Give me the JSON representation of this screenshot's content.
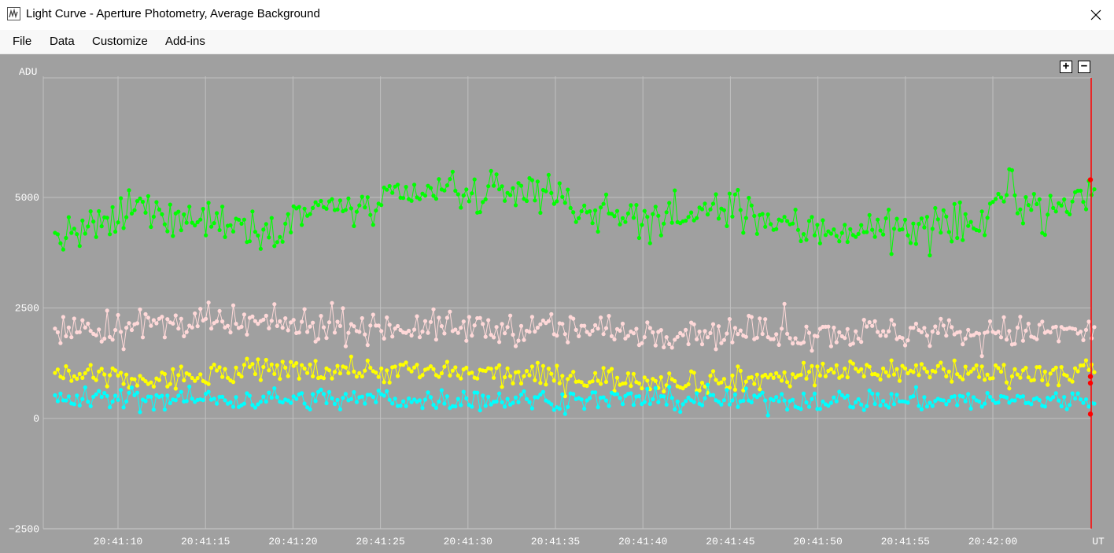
{
  "window": {
    "title": "Light Curve - Aperture Photometry, Average Background",
    "close_label": "✕"
  },
  "menu": {
    "items": [
      "File",
      "Data",
      "Customize",
      "Add-ins"
    ]
  },
  "zoom": {
    "plus_label": "+",
    "minus_label": "−"
  },
  "colors": {
    "plot_background": "#a0a0a0",
    "grid": "#c0c0c0",
    "cursor_line": "#ff0000",
    "series_1": "#00ff00",
    "series_2": "#ffd8d8",
    "series_3": "#ffff00",
    "series_4": "#00ffff"
  },
  "chart_data": {
    "type": "line",
    "title": "Light Curve - Aperture Photometry, Average Background",
    "ylabel": "ADU",
    "xlabel": "UT",
    "ylim": [
      -2500,
      7700
    ],
    "xlim": [
      6.4,
      66.2
    ],
    "x_unit": "seconds after 20:41:00",
    "yticks": [
      -2500,
      0,
      2500,
      5000
    ],
    "ytick_labels": [
      "−2500",
      "0",
      "2500",
      "5000"
    ],
    "xticks": [
      10,
      15,
      20,
      25,
      30,
      35,
      40,
      45,
      50,
      55,
      60
    ],
    "xtick_labels": [
      "20:41:10",
      "20:41:15",
      "20:41:20",
      "20:41:25",
      "20:41:30",
      "20:41:35",
      "20:41:40",
      "20:41:45",
      "20:41:50",
      "20:41:55",
      "20:42:00"
    ],
    "grid": true,
    "cursor_x": 66.2,
    "n_points": 380,
    "series": [
      {
        "color": "#00ff00",
        "mean": 4650,
        "noise": 280,
        "trend": [
          [
            6.4,
            4050
          ],
          [
            9,
            4300
          ],
          [
            11,
            4750
          ],
          [
            17,
            4400
          ],
          [
            19,
            4300
          ],
          [
            21,
            4800
          ],
          [
            24,
            4700
          ],
          [
            28,
            5150
          ],
          [
            31,
            5000
          ],
          [
            34,
            5250
          ],
          [
            37,
            4650
          ],
          [
            41,
            4500
          ],
          [
            45,
            4750
          ],
          [
            49,
            4250
          ],
          [
            52,
            4300
          ],
          [
            56,
            4250
          ],
          [
            59,
            4350
          ],
          [
            61,
            5200
          ],
          [
            63,
            4600
          ],
          [
            66.2,
            5250
          ]
        ],
        "cursor_value": 5400
      },
      {
        "color": "#ffd8d8",
        "mean": 2000,
        "noise": 220,
        "trend": [
          [
            6.4,
            2000
          ],
          [
            14,
            2150
          ],
          [
            30,
            2050
          ],
          [
            45,
            1950
          ],
          [
            66.2,
            1950
          ]
        ],
        "cursor_value": 800
      },
      {
        "color": "#ffff00",
        "mean": 1000,
        "noise": 170,
        "trend": [
          [
            6.4,
            1000
          ],
          [
            12,
            850
          ],
          [
            20,
            1150
          ],
          [
            28,
            1050
          ],
          [
            38,
            900
          ],
          [
            45,
            850
          ],
          [
            52,
            1100
          ],
          [
            66.2,
            1000
          ]
        ],
        "cursor_value": 950
      },
      {
        "color": "#00ffff",
        "mean": 450,
        "noise": 150,
        "trend": [
          [
            6.4,
            450
          ],
          [
            30,
            430
          ],
          [
            66.2,
            400
          ]
        ],
        "cursor_value": 100
      }
    ]
  }
}
